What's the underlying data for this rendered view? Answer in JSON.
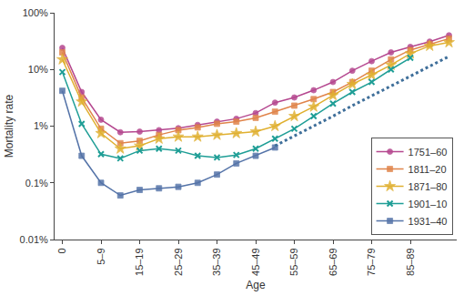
{
  "chart_data": {
    "type": "line",
    "log": "y",
    "grid": false,
    "legend": "lower right",
    "x_label": "Age",
    "y_label": "Mortality rate",
    "categories": [
      "0",
      null,
      "5–9",
      null,
      "15–19",
      null,
      "25–29",
      null,
      "35–39",
      null,
      "45–49",
      null,
      "55–59",
      null,
      "65–69",
      null,
      "75–79",
      null,
      "85–89",
      null,
      null
    ],
    "ylim": [
      0.01,
      100
    ],
    "yticks": [
      {
        "value": 0.01,
        "label": "0.01%"
      },
      {
        "value": 0.1,
        "label": "0.1%"
      },
      {
        "value": 1,
        "label": "1%"
      },
      {
        "value": 10,
        "label": "10%"
      },
      {
        "value": 100,
        "label": "100%"
      }
    ],
    "series": [
      {
        "name": "1751–60",
        "color": "#b5478f",
        "marker": "circle",
        "line_style": "solid",
        "values": [
          24,
          4,
          1.3,
          0.78,
          0.8,
          0.85,
          0.92,
          1.05,
          1.2,
          1.35,
          1.7,
          2.6,
          3.2,
          4.3,
          6,
          9.5,
          14,
          20,
          25,
          31,
          40
        ]
      },
      {
        "name": "1811–20",
        "color": "#e0844a",
        "marker": "square",
        "line_style": "solid",
        "values": [
          20,
          3.2,
          0.9,
          0.5,
          0.55,
          0.7,
          0.85,
          0.95,
          1.1,
          1.2,
          1.4,
          1.8,
          2.3,
          3,
          4,
          6,
          9.5,
          15,
          22,
          28,
          35
        ]
      },
      {
        "name": "1871–80",
        "color": "#e0b030",
        "marker": "star",
        "line_style": "solid",
        "values": [
          15,
          2.7,
          0.75,
          0.4,
          0.45,
          0.6,
          0.65,
          0.65,
          0.7,
          0.75,
          0.8,
          1.0,
          1.5,
          2.2,
          3.5,
          5.5,
          8,
          12,
          19,
          26,
          30
        ]
      },
      {
        "name": "1901–10",
        "color": "#1f9e96",
        "marker": "x",
        "line_style": "solid",
        "values": [
          9,
          1.1,
          0.32,
          0.27,
          0.37,
          0.4,
          0.37,
          0.3,
          0.28,
          0.31,
          0.4,
          0.6,
          0.9,
          1.5,
          2.5,
          4,
          6,
          10,
          16,
          null,
          null
        ]
      },
      {
        "name": "1931–40",
        "color": "#5473a8",
        "marker": "square",
        "line_style": "solid",
        "values": [
          4.2,
          0.3,
          0.1,
          0.06,
          0.075,
          0.08,
          0.085,
          0.1,
          0.14,
          0.22,
          0.3,
          0.42,
          null,
          null,
          null,
          null,
          null,
          null,
          null,
          null,
          null
        ]
      },
      {
        "color": "#3f6f9a",
        "line_style": "dotted",
        "values": [
          null,
          null,
          null,
          null,
          null,
          null,
          null,
          null,
          null,
          null,
          null,
          0.45,
          0.67,
          1.0,
          1.5,
          2.3,
          3.4,
          5.1,
          7.6,
          11.4,
          17
        ]
      }
    ]
  }
}
